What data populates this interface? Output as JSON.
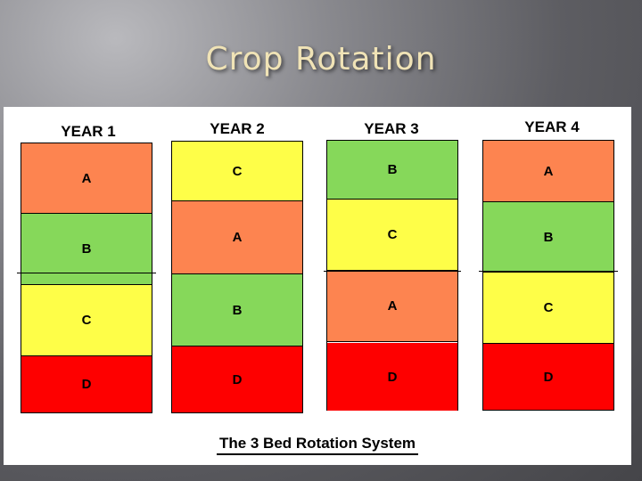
{
  "slide": {
    "title": "Crop Rotation"
  },
  "diagram": {
    "caption": "The 3 Bed Rotation System",
    "colors": {
      "A": "#fd8450",
      "B": "#86d85a",
      "C": "#fefe48",
      "D": "#fe0000"
    },
    "years": [
      {
        "label": "YEAR 1",
        "beds": [
          "A",
          "B",
          "C",
          "D"
        ]
      },
      {
        "label": "YEAR 2",
        "beds": [
          "C",
          "A",
          "B",
          "D"
        ]
      },
      {
        "label": "YEAR 3",
        "beds": [
          "B",
          "C",
          "A",
          "D"
        ]
      },
      {
        "label": "YEAR 4",
        "beds": [
          "A",
          "B",
          "C",
          "D"
        ]
      }
    ]
  }
}
